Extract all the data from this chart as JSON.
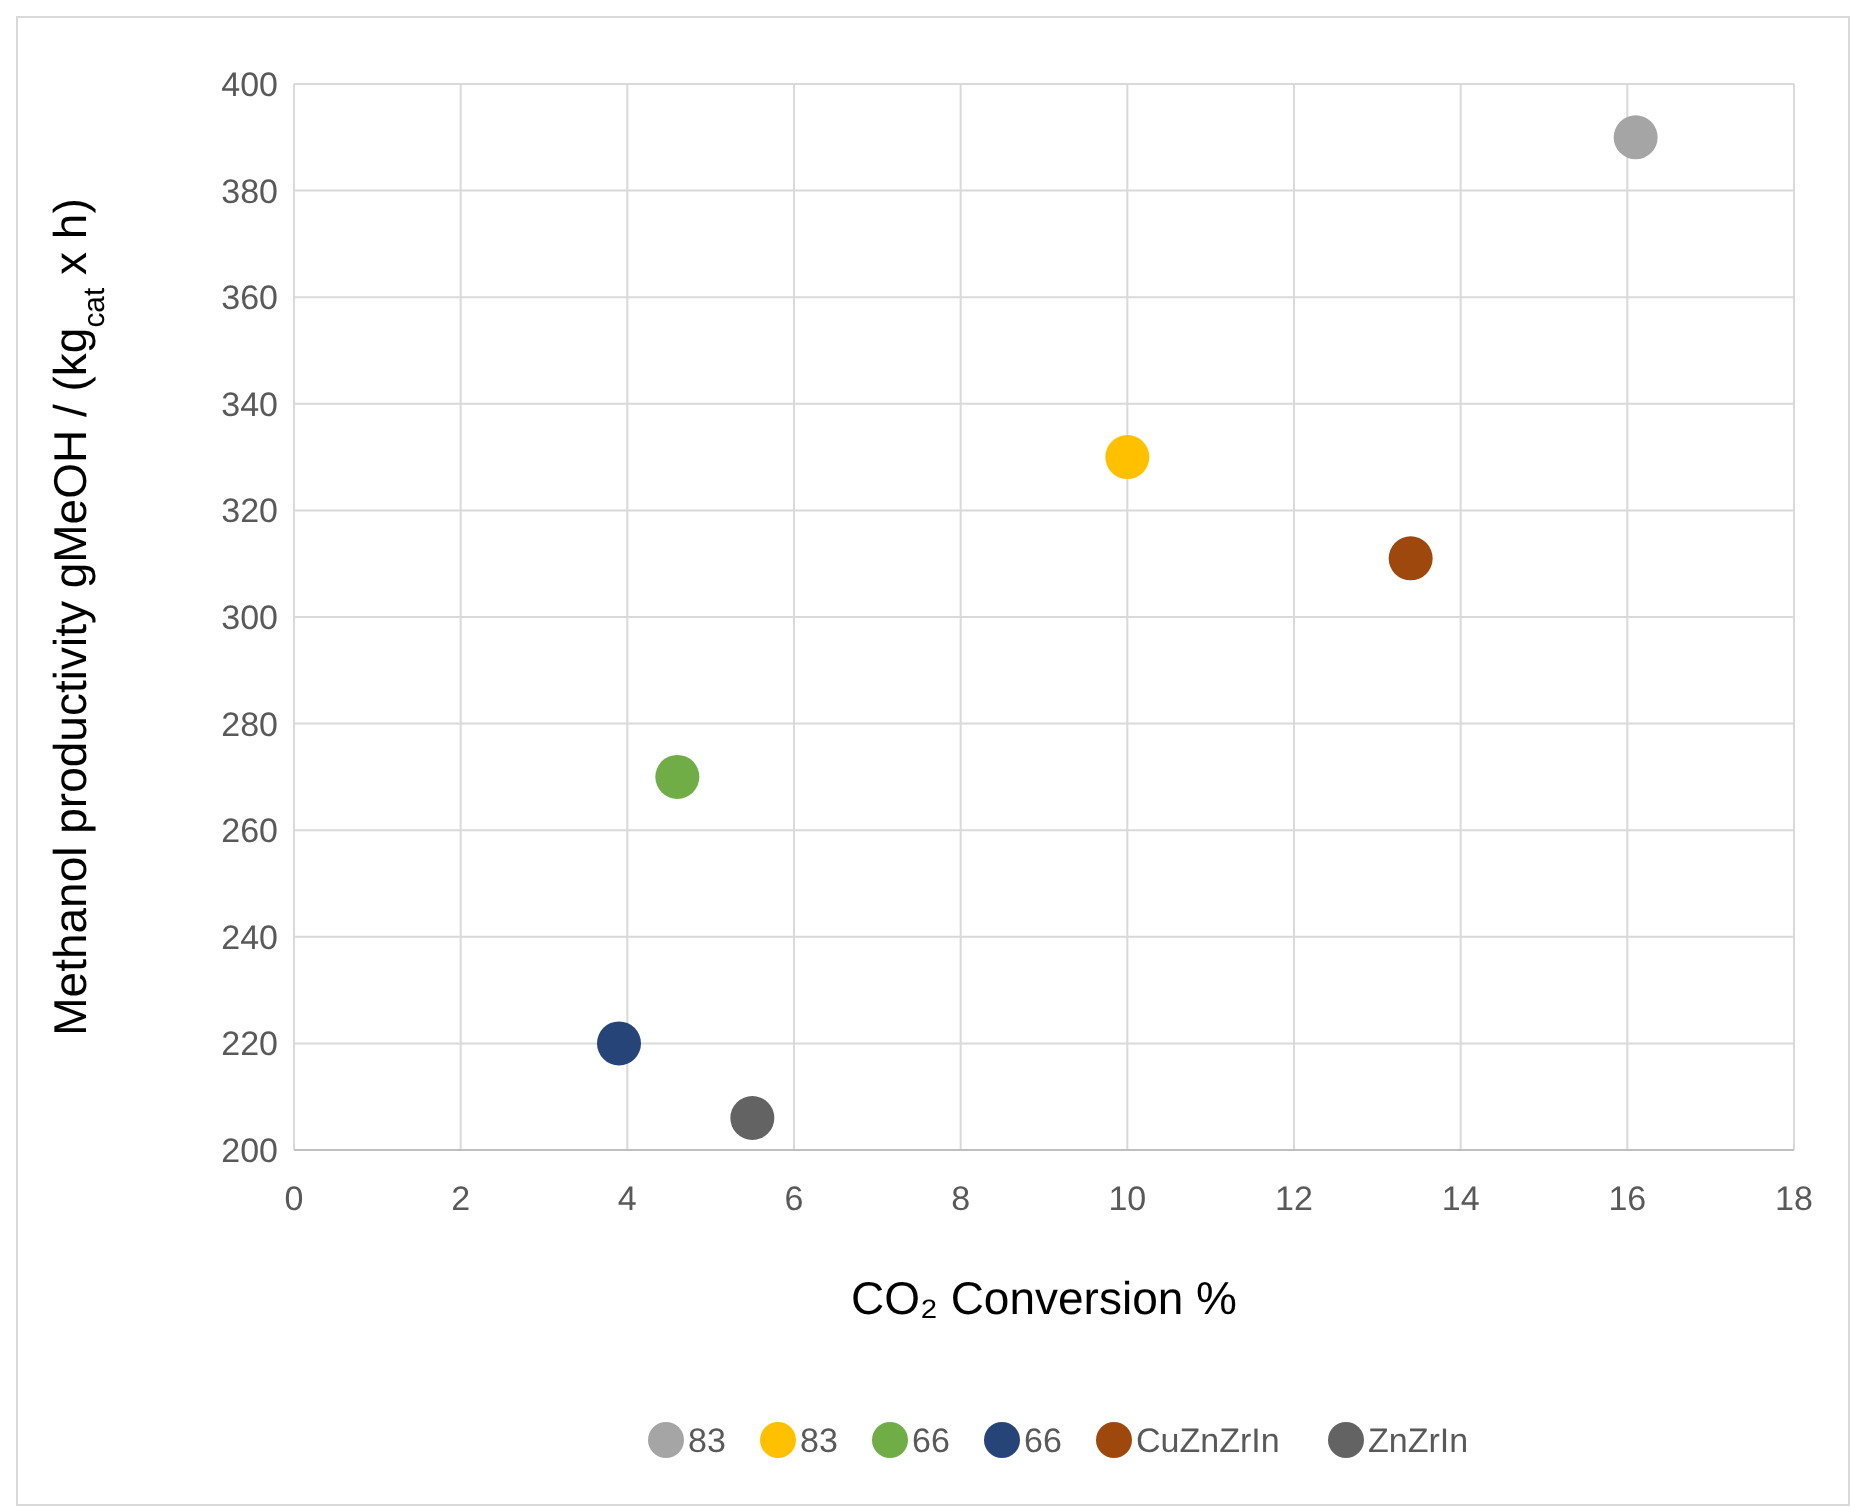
{
  "chart_data": {
    "type": "scatter",
    "xlabel": "CO₂ Conversion %",
    "ylabel": "Methanol productivity  gMeOH / (kg$_{cat}$ x h)",
    "xlim": [
      0,
      18
    ],
    "xticks": [
      0,
      2,
      4,
      6,
      8,
      10,
      12,
      14,
      16,
      18
    ],
    "ylim": [
      200,
      400
    ],
    "yticks": [
      200,
      220,
      240,
      260,
      280,
      300,
      320,
      340,
      360,
      380,
      400
    ],
    "grid": true,
    "legend": "bottom",
    "marker": "circle",
    "series": [
      {
        "name": "83",
        "color": "#a5a5a5",
        "x": [
          16.1
        ],
        "values": [
          390
        ]
      },
      {
        "name": "83",
        "color": "#ffc000",
        "x": [
          10
        ],
        "values": [
          330
        ]
      },
      {
        "name": "66",
        "color": "#70ad47",
        "x": [
          4.6
        ],
        "values": [
          270
        ]
      },
      {
        "name": "66",
        "color": "#264478",
        "x": [
          3.9
        ],
        "values": [
          220
        ]
      },
      {
        "name": "CuZnZrIn",
        "color": "#9e480e",
        "x": [
          13.4
        ],
        "values": [
          311
        ]
      },
      {
        "name": "ZnZrIn",
        "color": "#636363",
        "x": [
          5.5
        ],
        "values": [
          206
        ]
      }
    ]
  }
}
